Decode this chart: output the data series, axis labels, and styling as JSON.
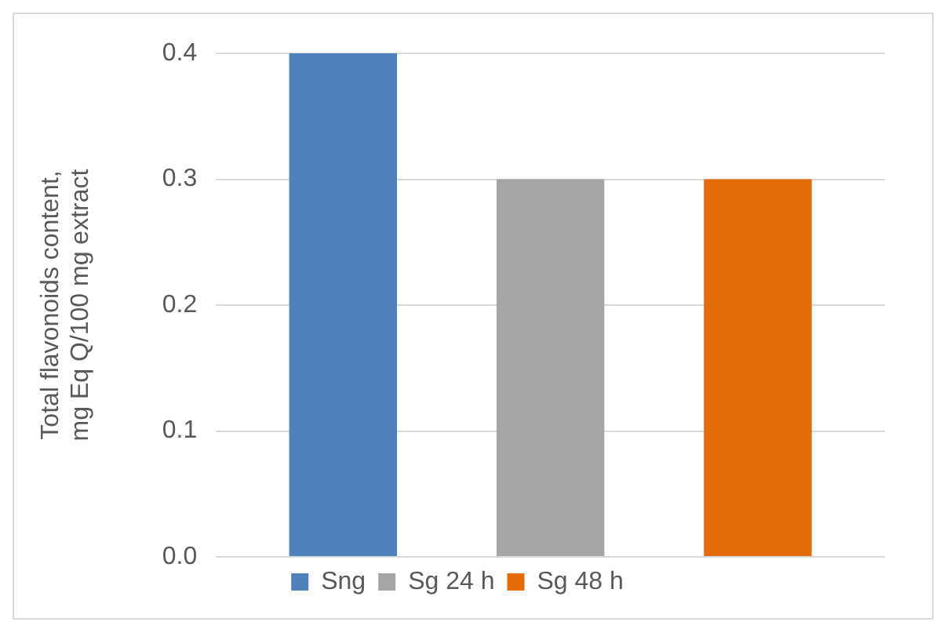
{
  "chart_data": {
    "type": "bar",
    "ylabel": "Total flavonoids content, mg Eq Q/100 mg extract",
    "categories": [
      null
    ],
    "series": [
      {
        "name": "Sng",
        "color": "#4f81bd",
        "values": [
          0.4
        ]
      },
      {
        "name": "Sg 24 h",
        "color": "#a5a5a5",
        "values": [
          0.3
        ]
      },
      {
        "name": "Sg 48 h",
        "color": "#e36c09",
        "values": [
          0.3
        ]
      }
    ],
    "ylim": [
      0,
      0.4
    ],
    "yticks": [
      {
        "value": 0,
        "label": "0.0"
      },
      0.1,
      0.2,
      0.3,
      0.4
    ],
    "grid": "y",
    "legend": "bottom"
  }
}
